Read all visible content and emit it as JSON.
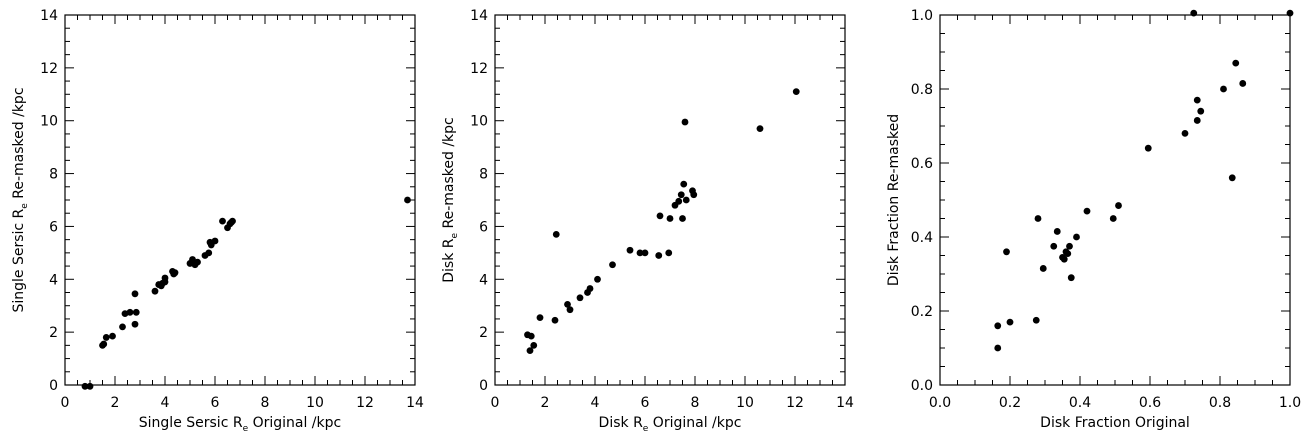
{
  "chart_data": [
    {
      "type": "scatter",
      "xlabel": {
        "pre": "Single Sersic R",
        "sub": "e",
        "post": " Original /kpc"
      },
      "ylabel": {
        "pre": "Single Sersic R",
        "sub": "e",
        "post": " Re-masked /kpc"
      },
      "xlim": [
        0,
        14
      ],
      "ylim": [
        0,
        14
      ],
      "xticks": [
        0,
        2,
        4,
        6,
        8,
        10,
        12,
        14
      ],
      "yticks": [
        0,
        2,
        4,
        6,
        8,
        10,
        12,
        14
      ],
      "xticklabels": [
        "0",
        "2",
        "4",
        "6",
        "8",
        "10",
        "12",
        "14"
      ],
      "yticklabels": [
        "0",
        "2",
        "4",
        "6",
        "8",
        "10",
        "12",
        "14"
      ],
      "points": [
        [
          0.8,
          -0.05
        ],
        [
          1.0,
          -0.05
        ],
        [
          1.5,
          1.5
        ],
        [
          1.55,
          1.55
        ],
        [
          1.65,
          1.8
        ],
        [
          1.9,
          1.85
        ],
        [
          2.3,
          2.2
        ],
        [
          2.4,
          2.7
        ],
        [
          2.6,
          2.75
        ],
        [
          2.8,
          2.3
        ],
        [
          2.85,
          2.75
        ],
        [
          2.8,
          3.45
        ],
        [
          3.6,
          3.55
        ],
        [
          3.75,
          3.8
        ],
        [
          3.85,
          3.75
        ],
        [
          3.9,
          3.85
        ],
        [
          4.0,
          3.9
        ],
        [
          4.0,
          4.05
        ],
        [
          4.3,
          4.3
        ],
        [
          4.35,
          4.2
        ],
        [
          4.4,
          4.25
        ],
        [
          5.0,
          4.6
        ],
        [
          5.1,
          4.75
        ],
        [
          5.2,
          4.55
        ],
        [
          5.3,
          4.65
        ],
        [
          5.6,
          4.9
        ],
        [
          5.75,
          5.0
        ],
        [
          5.8,
          5.4
        ],
        [
          5.85,
          5.3
        ],
        [
          6.0,
          5.45
        ],
        [
          6.3,
          6.2
        ],
        [
          6.5,
          5.95
        ],
        [
          6.6,
          6.1
        ],
        [
          6.65,
          6.15
        ],
        [
          6.7,
          6.2
        ],
        [
          13.7,
          7.0
        ]
      ]
    },
    {
      "type": "scatter",
      "xlabel": {
        "pre": "Disk R",
        "sub": "e",
        "post": " Original /kpc"
      },
      "ylabel": {
        "pre": "Disk R",
        "sub": "e",
        "post": " Re-masked /kpc"
      },
      "xlim": [
        0,
        14
      ],
      "ylim": [
        0,
        14
      ],
      "xticks": [
        0,
        2,
        4,
        6,
        8,
        10,
        12,
        14
      ],
      "yticks": [
        0,
        2,
        4,
        6,
        8,
        10,
        12,
        14
      ],
      "xticklabels": [
        "0",
        "2",
        "4",
        "6",
        "8",
        "10",
        "12",
        "14"
      ],
      "yticklabels": [
        "0",
        "2",
        "4",
        "6",
        "8",
        "10",
        "12",
        "14"
      ],
      "points": [
        [
          1.3,
          1.9
        ],
        [
          1.45,
          1.85
        ],
        [
          1.4,
          1.3
        ],
        [
          1.55,
          1.5
        ],
        [
          1.8,
          2.55
        ],
        [
          2.4,
          2.45
        ],
        [
          2.45,
          5.7
        ],
        [
          2.9,
          3.05
        ],
        [
          3.0,
          2.85
        ],
        [
          3.4,
          3.3
        ],
        [
          3.7,
          3.5
        ],
        [
          3.8,
          3.65
        ],
        [
          4.1,
          4.0
        ],
        [
          4.7,
          4.55
        ],
        [
          5.4,
          5.1
        ],
        [
          5.8,
          5.0
        ],
        [
          6.0,
          5.0
        ],
        [
          6.55,
          4.9
        ],
        [
          6.6,
          6.4
        ],
        [
          6.95,
          5.0
        ],
        [
          7.0,
          6.3
        ],
        [
          7.2,
          6.8
        ],
        [
          7.35,
          6.95
        ],
        [
          7.45,
          7.2
        ],
        [
          7.5,
          6.3
        ],
        [
          7.55,
          7.6
        ],
        [
          7.6,
          9.95
        ],
        [
          7.65,
          7.0
        ],
        [
          7.9,
          7.35
        ],
        [
          7.95,
          7.2
        ],
        [
          10.6,
          9.7
        ],
        [
          12.05,
          11.1
        ]
      ]
    },
    {
      "type": "scatter",
      "xlabel": {
        "pre": "Disk Fraction Original",
        "sub": "",
        "post": ""
      },
      "ylabel": {
        "pre": "Disk Fraction Re-masked",
        "sub": "",
        "post": ""
      },
      "xlim": [
        0,
        1
      ],
      "ylim": [
        0,
        1
      ],
      "xticks": [
        0,
        0.2,
        0.4,
        0.6,
        0.8,
        1.0
      ],
      "yticks": [
        0,
        0.2,
        0.4,
        0.6,
        0.8,
        1.0
      ],
      "xticklabels": [
        "0.0",
        "0.2",
        "0.4",
        "0.6",
        "0.8",
        "1.0"
      ],
      "yticklabels": [
        "0.0",
        "0.2",
        "0.4",
        "0.6",
        "0.8",
        "1.0"
      ],
      "points": [
        [
          0.165,
          0.1
        ],
        [
          0.165,
          0.16
        ],
        [
          0.19,
          0.36
        ],
        [
          0.2,
          0.17
        ],
        [
          0.275,
          0.175
        ],
        [
          0.28,
          0.45
        ],
        [
          0.295,
          0.315
        ],
        [
          0.325,
          0.375
        ],
        [
          0.335,
          0.415
        ],
        [
          0.35,
          0.345
        ],
        [
          0.355,
          0.34
        ],
        [
          0.36,
          0.36
        ],
        [
          0.365,
          0.355
        ],
        [
          0.37,
          0.375
        ],
        [
          0.375,
          0.29
        ],
        [
          0.39,
          0.4
        ],
        [
          0.42,
          0.47
        ],
        [
          0.495,
          0.45
        ],
        [
          0.51,
          0.485
        ],
        [
          0.595,
          0.64
        ],
        [
          0.7,
          0.68
        ],
        [
          0.725,
          1.005
        ],
        [
          0.735,
          0.715
        ],
        [
          0.735,
          0.77
        ],
        [
          0.745,
          0.74
        ],
        [
          0.81,
          0.8
        ],
        [
          0.835,
          0.56
        ],
        [
          0.845,
          0.87
        ],
        [
          0.865,
          0.815
        ],
        [
          1.0,
          1.005
        ]
      ]
    }
  ]
}
